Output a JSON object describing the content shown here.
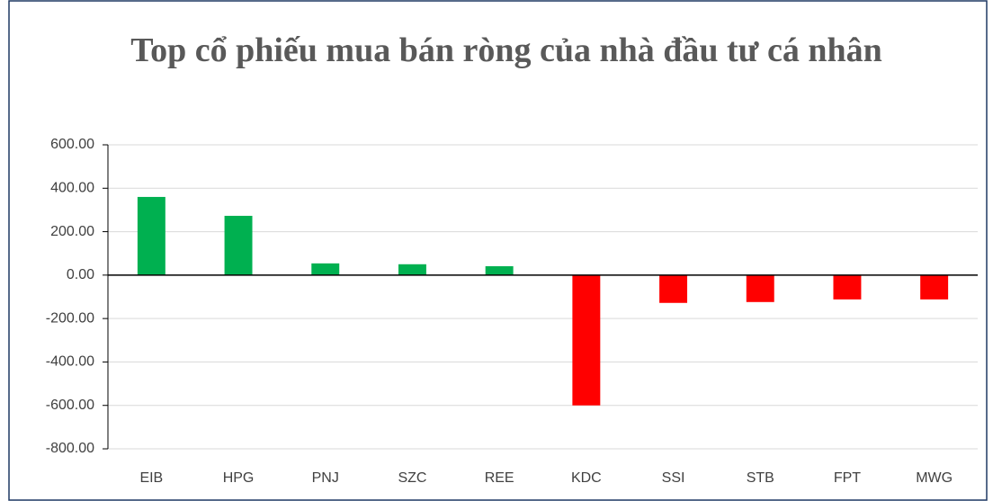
{
  "chart_data": {
    "type": "bar",
    "title": "Top cổ phiếu mua bán ròng của nhà đầu tư cá nhân",
    "categories": [
      "EIB",
      "HPG",
      "PNJ",
      "SZC",
      "REE",
      "KDC",
      "SSI",
      "STB",
      "FPT",
      "MWG"
    ],
    "values": [
      360,
      273,
      54,
      50,
      41,
      -600,
      -128,
      -124,
      -112,
      -112
    ],
    "colors": [
      "#00b050",
      "#00b050",
      "#00b050",
      "#00b050",
      "#00b050",
      "#ff0000",
      "#ff0000",
      "#ff0000",
      "#ff0000",
      "#ff0000"
    ],
    "ylim": [
      -800,
      600
    ],
    "yticks": [
      {
        "value": -800,
        "label": "-800.00"
      },
      {
        "value": -600,
        "label": "-600.00"
      },
      {
        "value": -400,
        "label": "-400.00"
      },
      {
        "value": -200,
        "label": "-200.00"
      },
      {
        "value": 0,
        "label": "0.00"
      },
      {
        "value": 200,
        "label": "200.00"
      },
      {
        "value": 400,
        "label": "400.00"
      },
      {
        "value": 600,
        "label": "600.00"
      }
    ],
    "grid": true
  }
}
